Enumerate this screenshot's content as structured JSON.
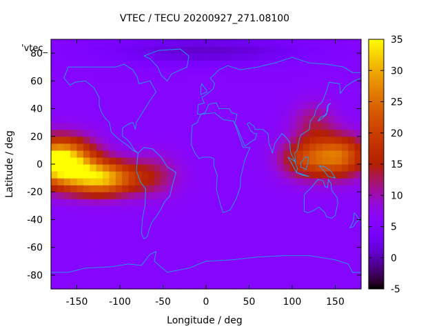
{
  "chart_data": {
    "type": "heatmap",
    "title": "VTEC / TECU 20200927_271.08100",
    "xlabel": "Longitude / deg",
    "ylabel": "Latitude / deg",
    "legend_label": "'vtec_",
    "xlim": [
      -180,
      180
    ],
    "ylim": [
      -90,
      90
    ],
    "x_ticks": [
      -150,
      -100,
      -50,
      0,
      50,
      100,
      150
    ],
    "y_ticks": [
      -80,
      -60,
      -40,
      -20,
      0,
      20,
      40,
      60,
      80
    ],
    "colorbar": {
      "range": [
        -5,
        35
      ],
      "ticks": [
        -5,
        0,
        5,
        10,
        15,
        20,
        25,
        30,
        35
      ]
    },
    "background_tec": 6,
    "features": [
      {
        "lon": -170,
        "lat": 2,
        "peak": 33,
        "sx": 38,
        "sy": 16
      },
      {
        "lon": -120,
        "lat": -10,
        "peak": 24,
        "sx": 40,
        "sy": 12
      },
      {
        "lon": -60,
        "lat": -8,
        "peak": 6,
        "sx": 30,
        "sy": 15
      },
      {
        "lon": 115,
        "lat": 4,
        "peak": 12,
        "sx": 30,
        "sy": 14
      },
      {
        "lon": 155,
        "lat": 6,
        "peak": 18,
        "sx": 32,
        "sy": 15
      },
      {
        "lon": 125,
        "lat": 30,
        "peak": 6,
        "sx": 25,
        "sy": 15
      },
      {
        "lon": 0,
        "lat": 82,
        "peak": -5,
        "sx": 120,
        "sy": 10
      }
    ],
    "grid": false
  }
}
